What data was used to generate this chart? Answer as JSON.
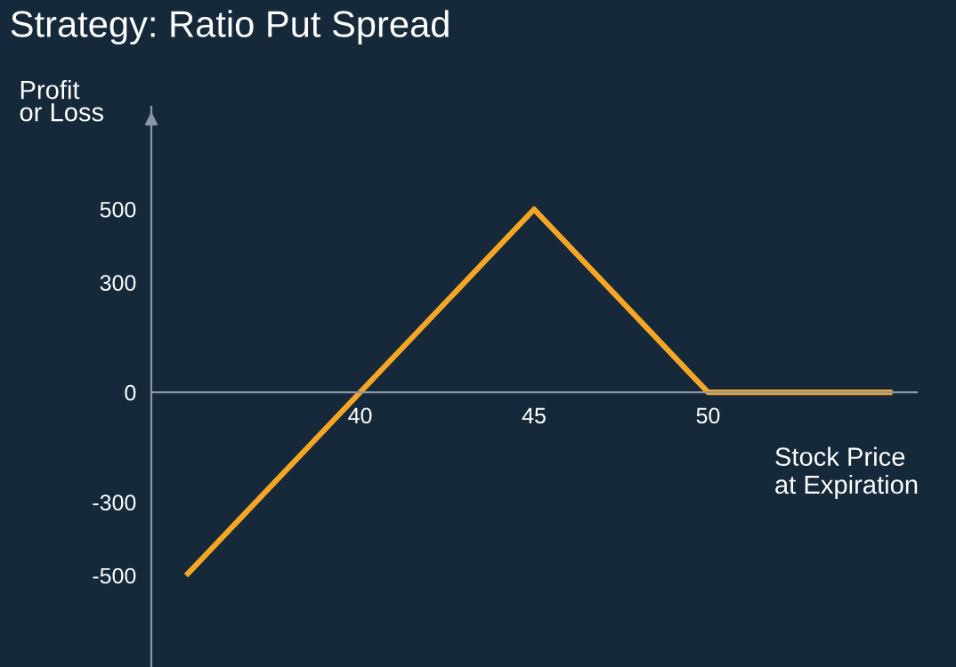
{
  "chart_data": {
    "type": "line",
    "title": "Strategy: Ratio Put Spread",
    "ylabel": "Profit\nor Loss",
    "xlabel": "Stock Price\nat Expiration",
    "x": [
      35,
      45,
      50,
      55.3
    ],
    "series": [
      {
        "color": "#f5a623",
        "values": [
          -500,
          500,
          0,
          0
        ]
      }
    ],
    "xlim": [
      34,
      56
    ],
    "ylim": [
      -750,
      780
    ],
    "xticks": [
      40,
      45,
      50
    ],
    "yticks": [
      500,
      300,
      0,
      -300,
      -500
    ],
    "grid": false,
    "marker": "none",
    "line_style": "solid"
  }
}
